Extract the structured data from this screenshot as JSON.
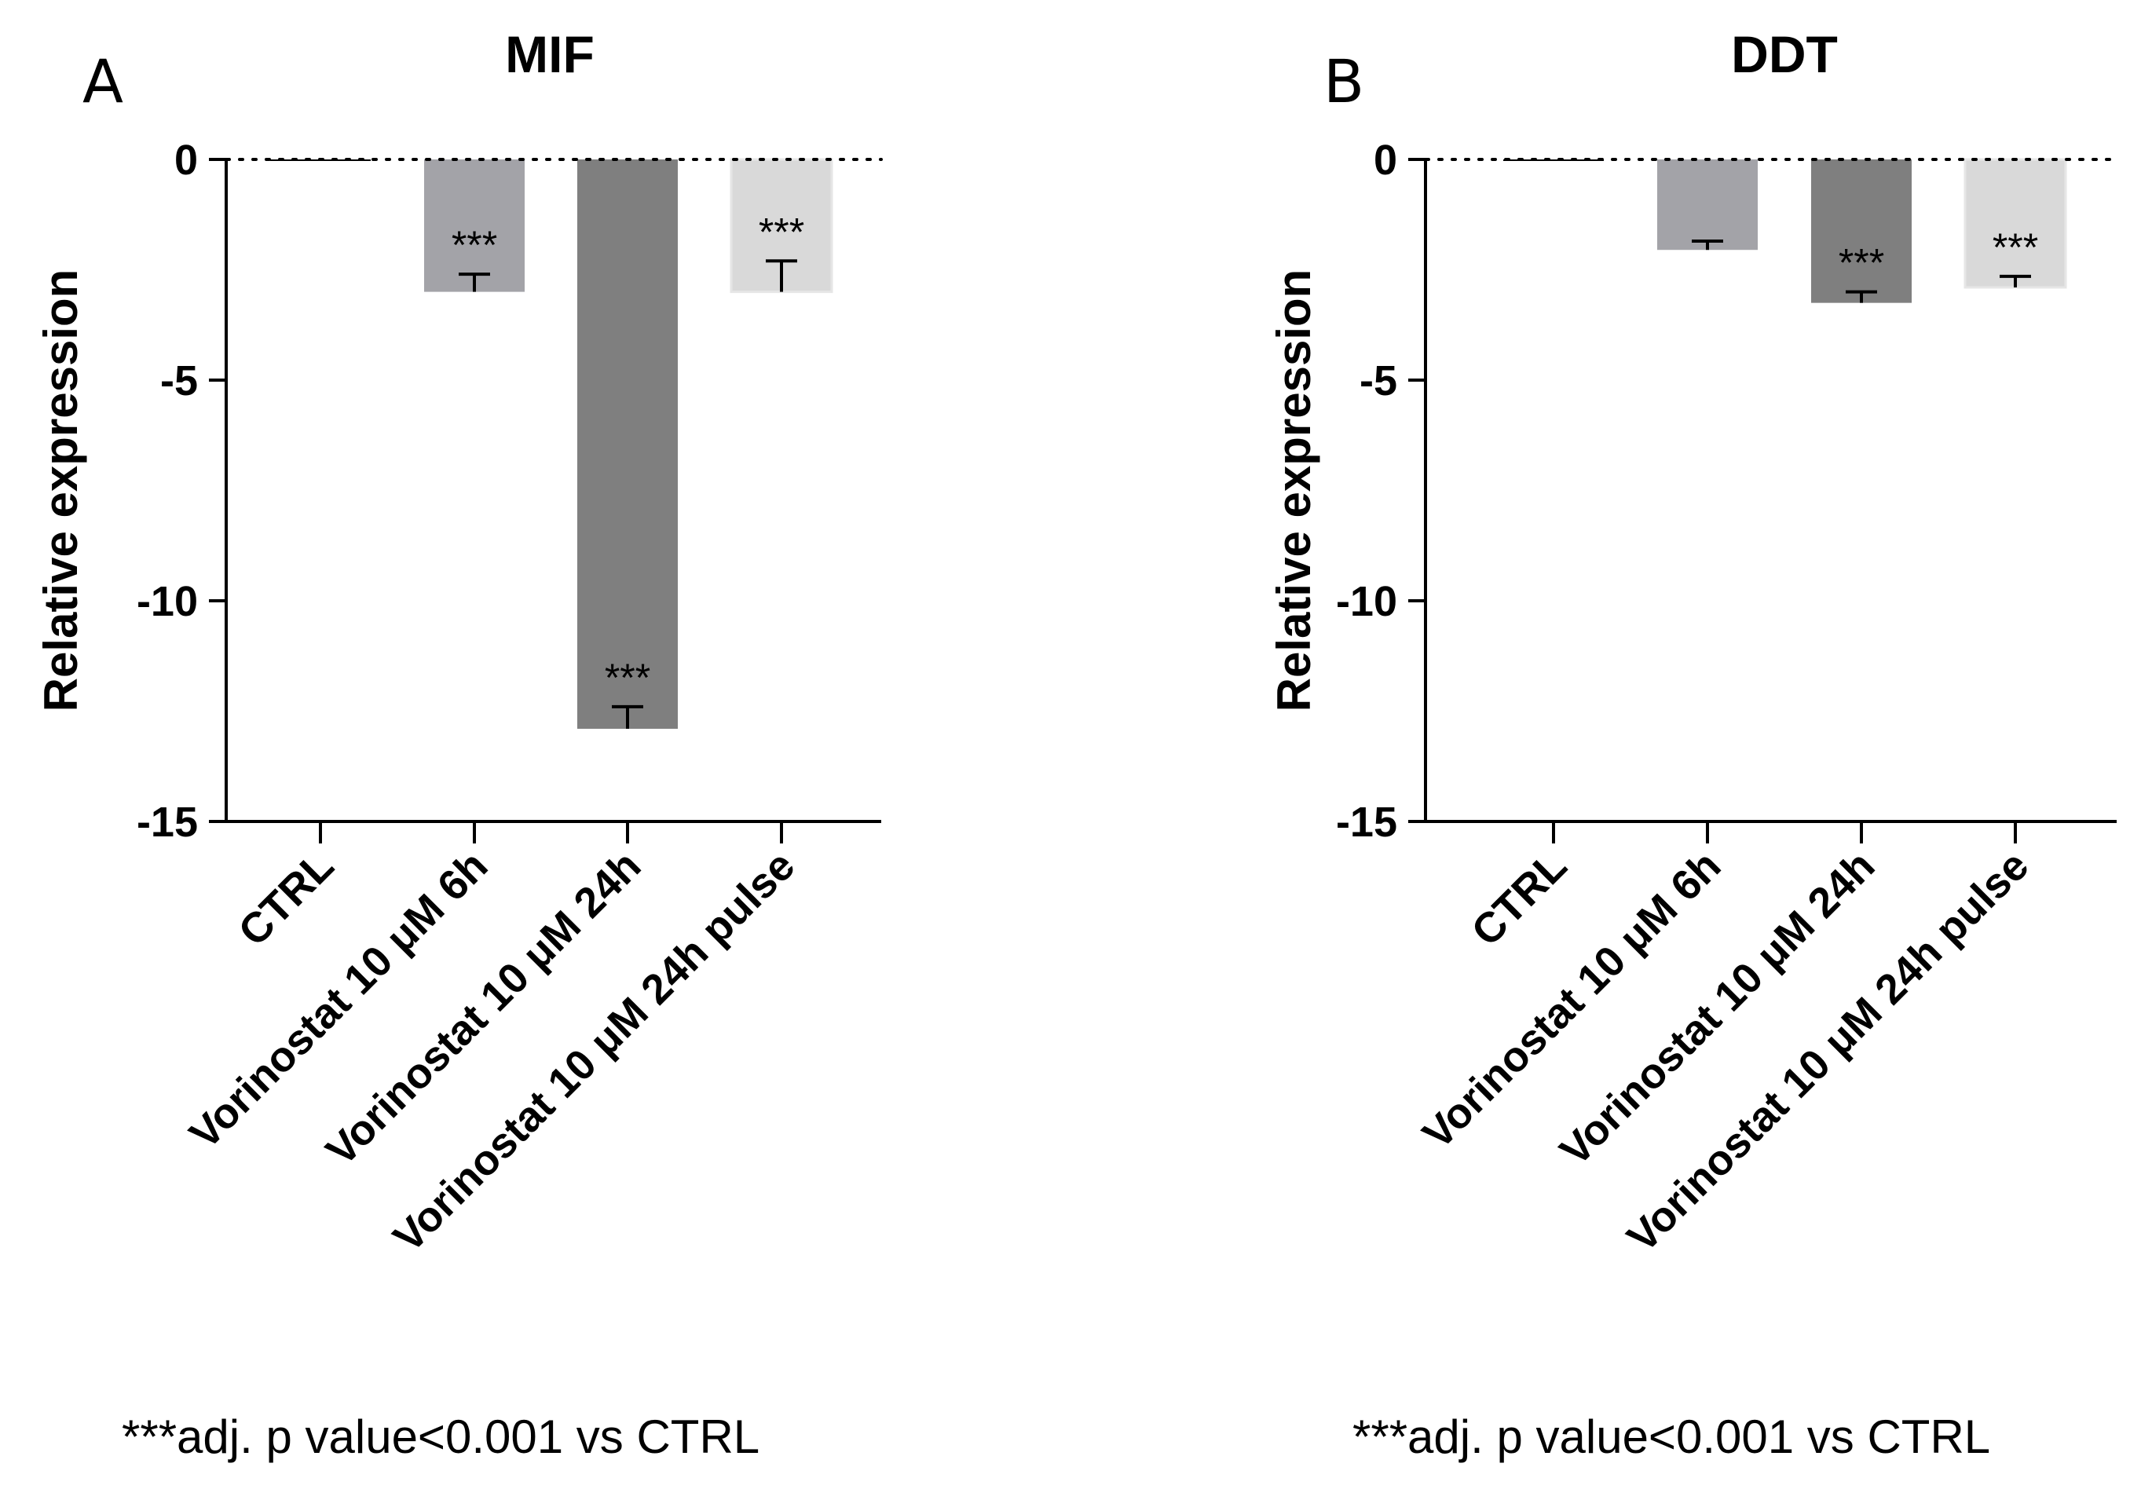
{
  "chart_data": [
    {
      "type": "bar",
      "panel": "A",
      "title": "MIF",
      "ylabel": "Relative expression",
      "xlabel": "",
      "ylim": [
        -15,
        0
      ],
      "yticks": [
        0,
        -5,
        -10,
        -15
      ],
      "categories": [
        "CTRL",
        "Vorinostat 10 μM 6h",
        "Vorinostat 10 μM 24h",
        "Vorinostat 10 μM 24h pulse"
      ],
      "values": [
        0,
        -3.0,
        -12.9,
        -3.0
      ],
      "errors": [
        0,
        0.4,
        0.5,
        0.7
      ],
      "significance": [
        "",
        "***",
        "***",
        "***"
      ],
      "colors": [
        "#000000",
        "#a3a3a8",
        "#7f7f7f",
        "#d9d9d9"
      ],
      "reference_line": 0,
      "footnote": "***adj. p value<0.001 vs CTRL"
    },
    {
      "type": "bar",
      "panel": "B",
      "title": "DDT",
      "ylabel": "Relative expression",
      "xlabel": "",
      "ylim": [
        -15,
        0
      ],
      "yticks": [
        0,
        -5,
        -10,
        -15
      ],
      "categories": [
        "CTRL",
        "Vorinostat 10 μM 6h",
        "Vorinostat 10 μM 24h",
        "Vorinostat 10 μM 24h pulse"
      ],
      "values": [
        0,
        -2.05,
        -3.25,
        -2.9
      ],
      "errors": [
        0,
        0.2,
        0.25,
        0.25
      ],
      "significance": [
        "",
        "",
        "***",
        "***"
      ],
      "colors": [
        "#000000",
        "#a3a3a8",
        "#7f7f7f",
        "#d9d9d9"
      ],
      "reference_line": 0,
      "footnote": "***adj. p value<0.001 vs CTRL"
    }
  ]
}
